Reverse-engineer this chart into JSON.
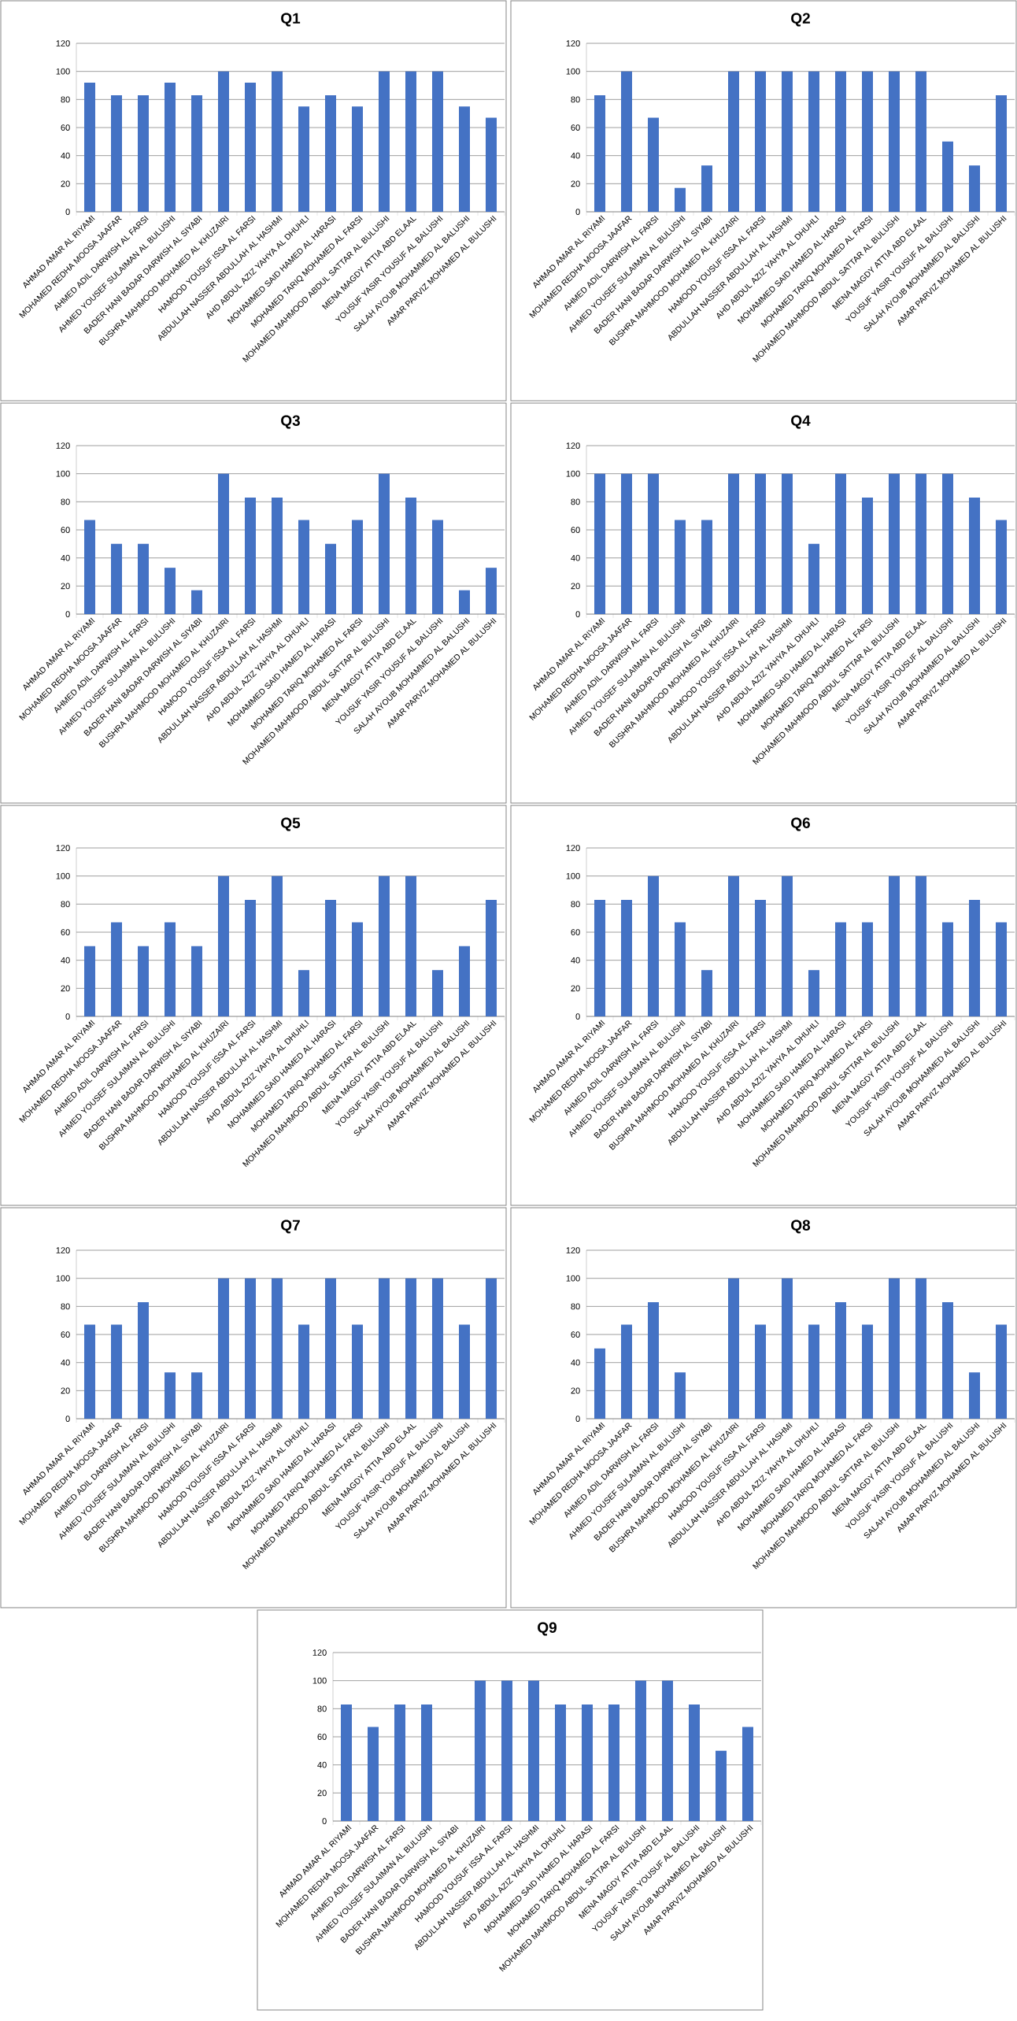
{
  "chart_data": [
    {
      "type": "bar",
      "title": "Q1",
      "color": "#4472c4",
      "ylim": [
        0,
        120
      ],
      "yticks": [
        0,
        20,
        40,
        60,
        80,
        100,
        120
      ],
      "grid": "y",
      "categories": [
        "AHMAD AMAR AL RIYAMI",
        "MOHAMED REDHA MOOSA JAAFAR",
        "AHMED ADIL DARWISH AL FARSI",
        "AHMED YOUSEF SULAIMAN AL BULUSHI",
        "BADER HANI BADAR DARWISH AL SIYABI",
        "BUSHRA MAHMOOD MOHAMED AL KHUZAIRI",
        "HAMOOD YOUSUF ISSA AL FARSI",
        "ABDULLAH NASSER ABDULLAH AL HASHMI",
        "AHD ABDUL AZIZ YAHYA AL DHUHLI",
        "MOHAMMED SAID HAMED AL HARASI",
        "MOHAMED TARIQ MOHAMED AL FARSI",
        "MOHAMED MAHMOOD ABDUL SATTAR AL BULUSHI",
        "MENA MAGDY ATTIA ABD ELAAL",
        "YOUSUF YASIR YOUSUF AL BALUSHI",
        "SALAH AYOUB MOHAMMED AL BALUSHI",
        "AMAR PARVIZ MOHAMED AL BULUSHI"
      ],
      "values": [
        92,
        83,
        83,
        92,
        83,
        100,
        92,
        100,
        75,
        83,
        75,
        100,
        100,
        100,
        75,
        67
      ]
    },
    {
      "type": "bar",
      "title": "Q2",
      "color": "#4472c4",
      "ylim": [
        0,
        120
      ],
      "yticks": [
        0,
        20,
        40,
        60,
        80,
        100,
        120
      ],
      "grid": "y",
      "categories": [
        "AHMAD AMAR AL RIYAMI",
        "MOHAMED REDHA MOOSA JAAFAR",
        "AHMED ADIL DARWISH AL FARSI",
        "AHMED YOUSEF SULAIMAN AL BULUSHI",
        "BADER HANI BADAR DARWISH AL SIYABI",
        "BUSHRA MAHMOOD MOHAMED AL KHUZAIRI",
        "HAMOOD YOUSUF ISSA AL FARSI",
        "ABDULLAH NASSER ABDULLAH AL HASHMI",
        "AHD ABDUL AZIZ YAHYA AL DHUHLI",
        "MOHAMMED SAID HAMED AL HARASI",
        "MOHAMED TARIQ MOHAMED AL FARSI",
        "MOHAMED MAHMOOD ABDUL SATTAR AL BULUSHI",
        "MENA MAGDY ATTIA ABD ELAAL",
        "YOUSUF YASIR YOUSUF AL BALUSHI",
        "SALAH AYOUB MOHAMMED AL BALUSHI",
        "AMAR PARVIZ MOHAMED AL BULUSHI"
      ],
      "values": [
        83,
        100,
        67,
        17,
        33,
        100,
        100,
        100,
        100,
        100,
        100,
        100,
        100,
        50,
        33,
        83
      ]
    },
    {
      "type": "bar",
      "title": "Q3",
      "color": "#4472c4",
      "ylim": [
        0,
        120
      ],
      "yticks": [
        0,
        20,
        40,
        60,
        80,
        100,
        120
      ],
      "grid": "y",
      "categories": [
        "AHMAD AMAR AL RIYAMI",
        "MOHAMED REDHA MOOSA JAAFAR",
        "AHMED ADIL DARWISH AL FARSI",
        "AHMED YOUSEF SULAIMAN AL BULUSHI",
        "BADER HANI BADAR DARWISH AL SIYABI",
        "BUSHRA MAHMOOD MOHAMED AL KHUZAIRI",
        "HAMOOD YOUSUF ISSA AL FARSI",
        "ABDULLAH NASSER ABDULLAH AL HASHMI",
        "AHD ABDUL AZIZ YAHYA AL DHUHLI",
        "MOHAMMED SAID HAMED AL HARASI",
        "MOHAMED TARIQ MOHAMED AL FARSI",
        "MOHAMED MAHMOOD ABDUL SATTAR AL BULUSHI",
        "MENA MAGDY ATTIA ABD ELAAL",
        "YOUSUF YASIR YOUSUF AL BALUSHI",
        "SALAH AYOUB MOHAMMED AL BALUSHI",
        "AMAR PARVIZ MOHAMED AL BULUSHI"
      ],
      "values": [
        67,
        50,
        50,
        33,
        17,
        100,
        83,
        83,
        67,
        50,
        67,
        100,
        83,
        67,
        17,
        33
      ]
    },
    {
      "type": "bar",
      "title": "Q4",
      "color": "#4472c4",
      "ylim": [
        0,
        120
      ],
      "yticks": [
        0,
        20,
        40,
        60,
        80,
        100,
        120
      ],
      "grid": "y",
      "categories": [
        "AHMAD AMAR AL RIYAMI",
        "MOHAMED REDHA MOOSA JAAFAR",
        "AHMED ADIL DARWISH AL FARSI",
        "AHMED YOUSEF SULAIMAN AL BULUSHI",
        "BADER HANI BADAR DARWISH AL SIYABI",
        "BUSHRA MAHMOOD MOHAMED AL KHUZAIRI",
        "HAMOOD YOUSUF ISSA AL FARSI",
        "ABDULLAH NASSER ABDULLAH AL HASHMI",
        "AHD ABDUL AZIZ YAHYA AL DHUHLI",
        "MOHAMMED SAID HAMED AL HARASI",
        "MOHAMED TARIQ MOHAMED AL FARSI",
        "MOHAMED MAHMOOD ABDUL SATTAR AL BULUSHI",
        "MENA MAGDY ATTIA ABD ELAAL",
        "YOUSUF YASIR YOUSUF AL BALUSHI",
        "SALAH AYOUB MOHAMMED AL BALUSHI",
        "AMAR PARVIZ MOHAMED AL BULUSHI"
      ],
      "values": [
        100,
        100,
        100,
        67,
        67,
        100,
        100,
        100,
        50,
        100,
        83,
        100,
        100,
        100,
        83,
        67
      ]
    },
    {
      "type": "bar",
      "title": "Q5",
      "color": "#4472c4",
      "ylim": [
        0,
        120
      ],
      "yticks": [
        0,
        20,
        40,
        60,
        80,
        100,
        120
      ],
      "grid": "y",
      "categories": [
        "AHMAD AMAR AL RIYAMI",
        "MOHAMED REDHA MOOSA JAAFAR",
        "AHMED ADIL DARWISH AL FARSI",
        "AHMED YOUSEF SULAIMAN AL BULUSHI",
        "BADER HANI BADAR DARWISH AL SIYABI",
        "BUSHRA MAHMOOD MOHAMED AL KHUZAIRI",
        "HAMOOD YOUSUF ISSA AL FARSI",
        "ABDULLAH NASSER ABDULLAH AL HASHMI",
        "AHD ABDUL AZIZ YAHYA AL DHUHLI",
        "MOHAMMED SAID HAMED AL HARASI",
        "MOHAMED TARIQ MOHAMED AL FARSI",
        "MOHAMED MAHMOOD ABDUL SATTAR AL BULUSHI",
        "MENA MAGDY ATTIA ABD ELAAL",
        "YOUSUF YASIR YOUSUF AL BALUSHI",
        "SALAH AYOUB MOHAMMED AL BALUSHI",
        "AMAR PARVIZ MOHAMED AL BULUSHI"
      ],
      "values": [
        50,
        67,
        50,
        67,
        50,
        100,
        83,
        100,
        33,
        83,
        67,
        100,
        100,
        33,
        50,
        83
      ]
    },
    {
      "type": "bar",
      "title": "Q6",
      "color": "#4472c4",
      "ylim": [
        0,
        120
      ],
      "yticks": [
        0,
        20,
        40,
        60,
        80,
        100,
        120
      ],
      "grid": "y",
      "categories": [
        "AHMAD AMAR AL RIYAMI",
        "MOHAMED REDHA MOOSA JAAFAR",
        "AHMED ADIL DARWISH AL FARSI",
        "AHMED YOUSEF SULAIMAN AL BULUSHI",
        "BADER HANI BADAR DARWISH AL SIYABI",
        "BUSHRA MAHMOOD MOHAMED AL KHUZAIRI",
        "HAMOOD YOUSUF ISSA AL FARSI",
        "ABDULLAH NASSER ABDULLAH AL HASHMI",
        "AHD ABDUL AZIZ YAHYA AL DHUHLI",
        "MOHAMMED SAID HAMED AL HARASI",
        "MOHAMED TARIQ MOHAMED AL FARSI",
        "MOHAMED MAHMOOD ABDUL SATTAR AL BULUSHI",
        "MENA MAGDY ATTIA ABD ELAAL",
        "YOUSUF YASIR YOUSUF AL BALUSHI",
        "SALAH AYOUB MOHAMMED AL BALUSHI",
        "AMAR PARVIZ MOHAMED AL BULUSHI"
      ],
      "values": [
        83,
        83,
        100,
        67,
        33,
        100,
        83,
        100,
        33,
        67,
        67,
        100,
        100,
        67,
        83,
        67
      ]
    },
    {
      "type": "bar",
      "title": "Q7",
      "color": "#4472c4",
      "ylim": [
        0,
        120
      ],
      "yticks": [
        0,
        20,
        40,
        60,
        80,
        100,
        120
      ],
      "grid": "y",
      "categories": [
        "AHMAD AMAR AL RIYAMI",
        "MOHAMED REDHA MOOSA JAAFAR",
        "AHMED ADIL DARWISH AL FARSI",
        "AHMED YOUSEF SULAIMAN AL BULUSHI",
        "BADER HANI BADAR DARWISH AL SIYABI",
        "BUSHRA MAHMOOD MOHAMED AL KHUZAIRI",
        "HAMOOD YOUSUF ISSA AL FARSI",
        "ABDULLAH NASSER ABDULLAH AL HASHMI",
        "AHD ABDUL AZIZ YAHYA AL DHUHLI",
        "MOHAMMED SAID HAMED AL HARASI",
        "MOHAMED TARIQ MOHAMED AL FARSI",
        "MOHAMED MAHMOOD ABDUL SATTAR AL BULUSHI",
        "MENA MAGDY ATTIA ABD ELAAL",
        "YOUSUF YASIR YOUSUF AL BALUSHI",
        "SALAH AYOUB MOHAMMED AL BALUSHI",
        "AMAR PARVIZ MOHAMED AL BULUSHI"
      ],
      "values": [
        67,
        67,
        83,
        33,
        33,
        100,
        100,
        100,
        67,
        100,
        67,
        100,
        100,
        100,
        67,
        100
      ]
    },
    {
      "type": "bar",
      "title": "Q8",
      "color": "#4472c4",
      "ylim": [
        0,
        120
      ],
      "yticks": [
        0,
        20,
        40,
        60,
        80,
        100,
        120
      ],
      "grid": "y",
      "categories": [
        "AHMAD AMAR AL RIYAMI",
        "MOHAMED REDHA MOOSA JAAFAR",
        "AHMED ADIL DARWISH AL FARSI",
        "AHMED YOUSEF SULAIMAN AL BULUSHI",
        "BADER HANI BADAR DARWISH AL SIYABI",
        "BUSHRA MAHMOOD MOHAMED AL KHUZAIRI",
        "HAMOOD YOUSUF ISSA AL FARSI",
        "ABDULLAH NASSER ABDULLAH AL HASHMI",
        "AHD ABDUL AZIZ YAHYA AL DHUHLI",
        "MOHAMMED SAID HAMED AL HARASI",
        "MOHAMED TARIQ MOHAMED AL FARSI",
        "MOHAMED MAHMOOD ABDUL SATTAR AL BULUSHI",
        "MENA MAGDY ATTIA ABD ELAAL",
        "YOUSUF YASIR YOUSUF AL BALUSHI",
        "SALAH AYOUB MOHAMMED AL BALUSHI",
        "AMAR PARVIZ MOHAMED AL BULUSHI"
      ],
      "values": [
        50,
        67,
        83,
        33,
        0,
        100,
        67,
        100,
        67,
        83,
        67,
        100,
        100,
        83,
        33,
        67
      ]
    },
    {
      "type": "bar",
      "title": "Q9",
      "color": "#4472c4",
      "ylim": [
        0,
        120
      ],
      "yticks": [
        0,
        20,
        40,
        60,
        80,
        100,
        120
      ],
      "grid": "y",
      "categories": [
        "AHMAD AMAR AL RIYAMI",
        "MOHAMED REDHA MOOSA JAAFAR",
        "AHMED ADIL DARWISH AL FARSI",
        "AHMED YOUSEF SULAIMAN AL BULUSHI",
        "BADER HANI BADAR DARWISH AL SIYABI",
        "BUSHRA MAHMOOD MOHAMED AL KHUZAIRI",
        "HAMOOD YOUSUF ISSA AL FARSI",
        "ABDULLAH NASSER ABDULLAH AL HASHMI",
        "AHD ABDUL AZIZ YAHYA AL DHUHLI",
        "MOHAMMED SAID HAMED AL HARASI",
        "MOHAMED TARIQ MOHAMED AL FARSI",
        "MOHAMED MAHMOOD ABDUL SATTAR AL BULUSHI",
        "MENA MAGDY ATTIA ABD ELAAL",
        "YOUSUF YASIR YOUSUF AL BALUSHI",
        "SALAH AYOUB MOHAMMED AL BALUSHI",
        "AMAR PARVIZ MOHAMED AL BULUSHI"
      ],
      "values": [
        83,
        67,
        83,
        83,
        0,
        100,
        100,
        100,
        83,
        83,
        83,
        100,
        100,
        83,
        50,
        67
      ]
    }
  ]
}
